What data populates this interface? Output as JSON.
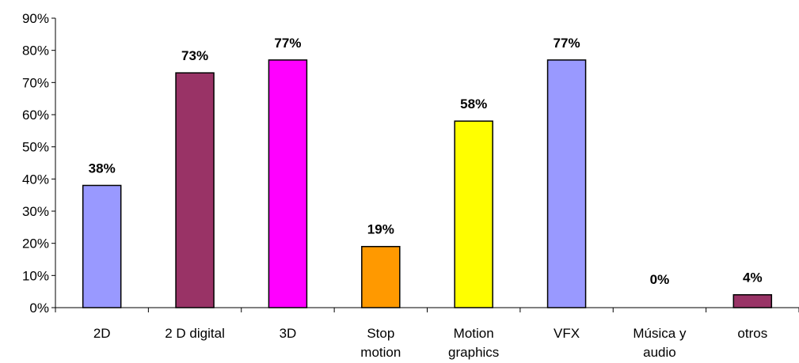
{
  "chart_data": {
    "type": "bar",
    "title": "",
    "xlabel": "",
    "ylabel": "",
    "ylim": [
      0,
      90
    ],
    "ytick_step": 10,
    "ytick_suffix": "%",
    "grid": false,
    "legend": "none",
    "categories": [
      [
        "2D"
      ],
      [
        "2 D digital"
      ],
      [
        "3D"
      ],
      [
        "Stop",
        "motion"
      ],
      [
        "Motion",
        "graphics"
      ],
      [
        "VFX"
      ],
      [
        "Música y",
        "audio"
      ],
      [
        "otros"
      ]
    ],
    "values": [
      38,
      73,
      77,
      19,
      58,
      77,
      0,
      4
    ],
    "data_labels": [
      "38%",
      "73%",
      "77%",
      "19%",
      "58%",
      "77%",
      "0%",
      "4%"
    ],
    "colors": [
      "#9999FF",
      "#993366",
      "#FF00FF",
      "#FF9900",
      "#FFFF00",
      "#9999FF",
      "#FFFFFF",
      "#993366"
    ]
  }
}
